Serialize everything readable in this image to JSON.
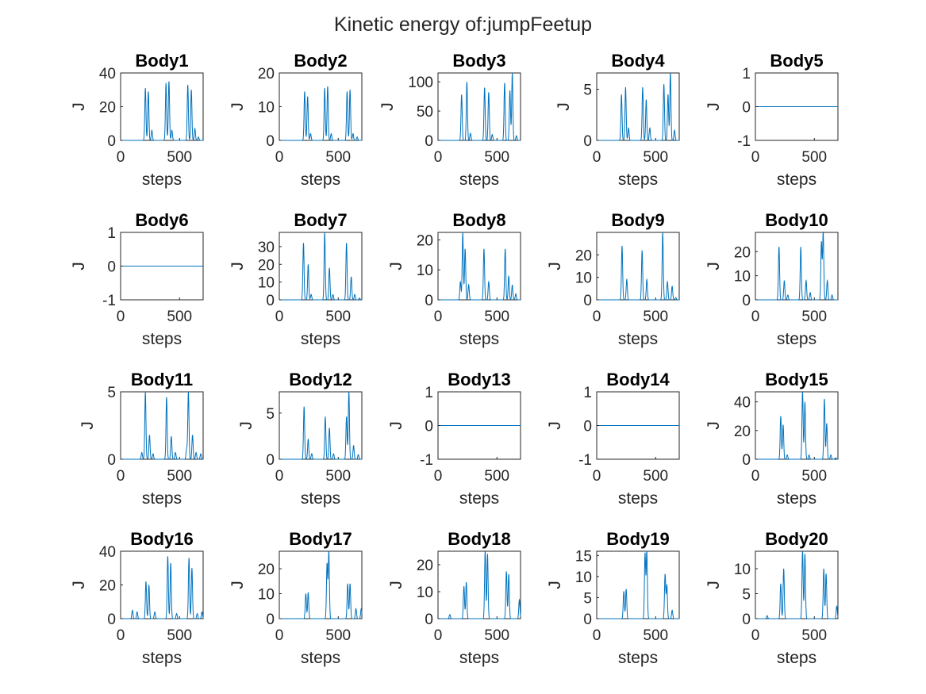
{
  "figure": {
    "title": "Kinetic energy of:jumpFeetup"
  },
  "colors": {
    "line": "#0072BD",
    "axis": "#262626",
    "background": "#ffffff"
  },
  "chart_data": [
    {
      "type": "line",
      "title": "Body1",
      "xlabel": "steps",
      "ylabel": "J",
      "xlim": [
        0,
        700
      ],
      "ylim": [
        0,
        40
      ],
      "xticks": [
        0,
        500
      ],
      "yticks": [
        0,
        20,
        40
      ],
      "peaks": [
        [
          210,
          31
        ],
        [
          235,
          29
        ],
        [
          265,
          6
        ],
        [
          385,
          34
        ],
        [
          410,
          35
        ],
        [
          435,
          6
        ],
        [
          570,
          33
        ],
        [
          600,
          30
        ],
        [
          630,
          7
        ],
        [
          660,
          2
        ]
      ]
    },
    {
      "type": "line",
      "title": "Body2",
      "xlabel": "steps",
      "ylabel": "J",
      "xlim": [
        0,
        700
      ],
      "ylim": [
        0,
        20
      ],
      "xticks": [
        0,
        500
      ],
      "yticks": [
        0,
        10,
        20
      ],
      "peaks": [
        [
          215,
          14.5
        ],
        [
          240,
          13
        ],
        [
          265,
          2
        ],
        [
          385,
          15.5
        ],
        [
          410,
          16
        ],
        [
          440,
          2
        ],
        [
          575,
          14.5
        ],
        [
          600,
          15
        ],
        [
          625,
          2
        ],
        [
          660,
          1
        ]
      ]
    },
    {
      "type": "line",
      "title": "Body3",
      "xlabel": "steps",
      "ylabel": "J",
      "xlim": [
        0,
        700
      ],
      "ylim": [
        0,
        115
      ],
      "xticks": [
        0,
        500
      ],
      "yticks": [
        0,
        50,
        100
      ],
      "peaks": [
        [
          200,
          78
        ],
        [
          245,
          100
        ],
        [
          275,
          12
        ],
        [
          395,
          90
        ],
        [
          430,
          82
        ],
        [
          460,
          10
        ],
        [
          565,
          98
        ],
        [
          610,
          85
        ],
        [
          630,
          115
        ],
        [
          665,
          8
        ]
      ]
    },
    {
      "type": "line",
      "title": "Body4",
      "xlabel": "steps",
      "ylabel": "J",
      "xlim": [
        0,
        700
      ],
      "ylim": [
        0,
        6.6
      ],
      "xticks": [
        0,
        500
      ],
      "yticks": [
        0,
        5
      ],
      "peaks": [
        [
          210,
          4.5
        ],
        [
          245,
          5.2
        ],
        [
          270,
          1.2
        ],
        [
          390,
          5.2
        ],
        [
          420,
          4
        ],
        [
          450,
          1.2
        ],
        [
          570,
          5.5
        ],
        [
          605,
          4.5
        ],
        [
          625,
          6.6
        ],
        [
          660,
          1
        ]
      ]
    },
    {
      "type": "line",
      "title": "Body5",
      "xlabel": "steps",
      "ylabel": "J",
      "xlim": [
        0,
        700
      ],
      "ylim": [
        -1,
        1
      ],
      "xticks": [
        0,
        500
      ],
      "yticks": [
        -1,
        0,
        1
      ],
      "peaks": []
    },
    {
      "type": "line",
      "title": "Body6",
      "xlabel": "steps",
      "ylabel": "J",
      "xlim": [
        0,
        700
      ],
      "ylim": [
        -1,
        1
      ],
      "xticks": [
        0,
        500
      ],
      "yticks": [
        -1,
        0,
        1
      ],
      "peaks": []
    },
    {
      "type": "line",
      "title": "Body7",
      "xlabel": "steps",
      "ylabel": "J",
      "xlim": [
        0,
        700
      ],
      "ylim": [
        0,
        38
      ],
      "xticks": [
        0,
        500
      ],
      "yticks": [
        0,
        10,
        20,
        30
      ],
      "peaks": [
        [
          205,
          32
        ],
        [
          245,
          20
        ],
        [
          270,
          3
        ],
        [
          385,
          38
        ],
        [
          425,
          18
        ],
        [
          455,
          3
        ],
        [
          570,
          32
        ],
        [
          610,
          13
        ],
        [
          640,
          3
        ],
        [
          680,
          1
        ]
      ]
    },
    {
      "type": "line",
      "title": "Body8",
      "xlabel": "steps",
      "ylabel": "J",
      "xlim": [
        0,
        700
      ],
      "ylim": [
        0,
        22.5
      ],
      "xticks": [
        0,
        500
      ],
      "yticks": [
        0,
        10,
        20
      ],
      "peaks": [
        [
          190,
          6
        ],
        [
          210,
          22.5
        ],
        [
          230,
          17
        ],
        [
          260,
          5
        ],
        [
          390,
          17
        ],
        [
          430,
          6
        ],
        [
          570,
          17
        ],
        [
          600,
          8
        ],
        [
          630,
          5
        ],
        [
          660,
          2
        ]
      ]
    },
    {
      "type": "line",
      "title": "Body9",
      "xlabel": "steps",
      "ylabel": "J",
      "xlim": [
        0,
        700
      ],
      "ylim": [
        0,
        30
      ],
      "xticks": [
        0,
        500
      ],
      "yticks": [
        0,
        10,
        20
      ],
      "peaks": [
        [
          215,
          24
        ],
        [
          255,
          9
        ],
        [
          385,
          22
        ],
        [
          425,
          9
        ],
        [
          560,
          30
        ],
        [
          600,
          8
        ],
        [
          640,
          6
        ],
        [
          670,
          1
        ]
      ]
    },
    {
      "type": "line",
      "title": "Body10",
      "xlabel": "steps",
      "ylabel": "J",
      "xlim": [
        0,
        700
      ],
      "ylim": [
        0,
        28
      ],
      "xticks": [
        0,
        500
      ],
      "yticks": [
        0,
        10,
        20
      ],
      "peaks": [
        [
          200,
          22
        ],
        [
          245,
          8
        ],
        [
          275,
          2
        ],
        [
          385,
          22
        ],
        [
          430,
          8
        ],
        [
          465,
          3
        ],
        [
          560,
          24
        ],
        [
          575,
          28
        ],
        [
          610,
          8
        ],
        [
          650,
          2
        ]
      ]
    },
    {
      "type": "line",
      "title": "Body11",
      "xlabel": "steps",
      "ylabel": "J",
      "xlim": [
        0,
        700
      ],
      "ylim": [
        0,
        5
      ],
      "xticks": [
        0,
        500
      ],
      "yticks": [
        0,
        5
      ],
      "peaks": [
        [
          180,
          0.5
        ],
        [
          210,
          5
        ],
        [
          245,
          1.8
        ],
        [
          275,
          0.4
        ],
        [
          390,
          4.6
        ],
        [
          430,
          1.7
        ],
        [
          465,
          0.5
        ],
        [
          560,
          0.8
        ],
        [
          575,
          5
        ],
        [
          610,
          1.8
        ],
        [
          640,
          0.5
        ],
        [
          680,
          0.4
        ]
      ]
    },
    {
      "type": "line",
      "title": "Body12",
      "xlabel": "steps",
      "ylabel": "J",
      "xlim": [
        0,
        700
      ],
      "ylim": [
        0,
        7.3
      ],
      "xticks": [
        0,
        500
      ],
      "yticks": [
        0,
        5
      ],
      "peaks": [
        [
          210,
          5.7
        ],
        [
          245,
          2.2
        ],
        [
          275,
          0.6
        ],
        [
          390,
          4.6
        ],
        [
          425,
          3.4
        ],
        [
          460,
          0.6
        ],
        [
          570,
          4.6
        ],
        [
          590,
          7.3
        ],
        [
          630,
          1.5
        ],
        [
          670,
          0.5
        ]
      ]
    },
    {
      "type": "line",
      "title": "Body13",
      "xlabel": "steps",
      "ylabel": "J",
      "xlim": [
        0,
        700
      ],
      "ylim": [
        -1,
        1
      ],
      "xticks": [
        0,
        500
      ],
      "yticks": [
        -1,
        0,
        1
      ],
      "peaks": []
    },
    {
      "type": "line",
      "title": "Body14",
      "xlabel": "steps",
      "ylabel": "J",
      "xlim": [
        0,
        700
      ],
      "ylim": [
        -1,
        1
      ],
      "xticks": [
        0,
        500
      ],
      "yticks": [
        -1,
        0,
        1
      ],
      "peaks": []
    },
    {
      "type": "line",
      "title": "Body15",
      "xlabel": "steps",
      "ylabel": "J",
      "xlim": [
        0,
        700
      ],
      "ylim": [
        0,
        47
      ],
      "xticks": [
        0,
        500
      ],
      "yticks": [
        0,
        20,
        40
      ],
      "peaks": [
        [
          215,
          30
        ],
        [
          235,
          24
        ],
        [
          270,
          3
        ],
        [
          400,
          47
        ],
        [
          420,
          40
        ],
        [
          455,
          3
        ],
        [
          585,
          42
        ],
        [
          605,
          25
        ],
        [
          640,
          3
        ],
        [
          680,
          1
        ]
      ]
    },
    {
      "type": "line",
      "title": "Body16",
      "xlabel": "steps",
      "ylabel": "J",
      "xlim": [
        0,
        700
      ],
      "ylim": [
        0,
        40
      ],
      "xticks": [
        0,
        500
      ],
      "yticks": [
        0,
        20,
        40
      ],
      "peaks": [
        [
          100,
          5
        ],
        [
          140,
          4
        ],
        [
          215,
          22
        ],
        [
          240,
          20
        ],
        [
          290,
          4
        ],
        [
          400,
          37
        ],
        [
          425,
          33
        ],
        [
          475,
          3
        ],
        [
          580,
          36
        ],
        [
          605,
          30
        ],
        [
          650,
          3
        ],
        [
          690,
          4
        ]
      ]
    },
    {
      "type": "line",
      "title": "Body17",
      "xlabel": "steps",
      "ylabel": "J",
      "xlim": [
        0,
        700
      ],
      "ylim": [
        0,
        27
      ],
      "xticks": [
        0,
        500
      ],
      "yticks": [
        0,
        10,
        20
      ],
      "peaks": [
        [
          225,
          10
        ],
        [
          245,
          10.5
        ],
        [
          405,
          22
        ],
        [
          420,
          27
        ],
        [
          580,
          14
        ],
        [
          600,
          14
        ],
        [
          650,
          4
        ],
        [
          695,
          4
        ]
      ]
    },
    {
      "type": "line",
      "title": "Body18",
      "xlabel": "steps",
      "ylabel": "J",
      "xlim": [
        0,
        700
      ],
      "ylim": [
        0,
        25
      ],
      "xticks": [
        0,
        500
      ],
      "yticks": [
        0,
        10,
        20
      ],
      "peaks": [
        [
          100,
          1.5
        ],
        [
          220,
          12
        ],
        [
          240,
          13.5
        ],
        [
          400,
          25
        ],
        [
          420,
          24
        ],
        [
          580,
          17.5
        ],
        [
          600,
          16.5
        ],
        [
          690,
          7
        ]
      ]
    },
    {
      "type": "line",
      "title": "Body19",
      "xlabel": "steps",
      "ylabel": "J",
      "xlim": [
        0,
        700
      ],
      "ylim": [
        0,
        16
      ],
      "xticks": [
        0,
        500
      ],
      "yticks": [
        0,
        5,
        10,
        15
      ],
      "peaks": [
        [
          230,
          6.5
        ],
        [
          250,
          7
        ],
        [
          410,
          15.5
        ],
        [
          425,
          16
        ],
        [
          580,
          10.5
        ],
        [
          595,
          8
        ],
        [
          640,
          2
        ]
      ]
    },
    {
      "type": "line",
      "title": "Body20",
      "xlabel": "steps",
      "ylabel": "J",
      "xlim": [
        0,
        700
      ],
      "ylim": [
        0,
        13.5
      ],
      "xticks": [
        0,
        500
      ],
      "yticks": [
        0,
        5,
        10
      ],
      "peaks": [
        [
          100,
          0.6
        ],
        [
          215,
          7
        ],
        [
          240,
          10
        ],
        [
          400,
          13.5
        ],
        [
          420,
          13
        ],
        [
          580,
          10
        ],
        [
          600,
          9
        ],
        [
          690,
          2.5
        ]
      ]
    }
  ]
}
